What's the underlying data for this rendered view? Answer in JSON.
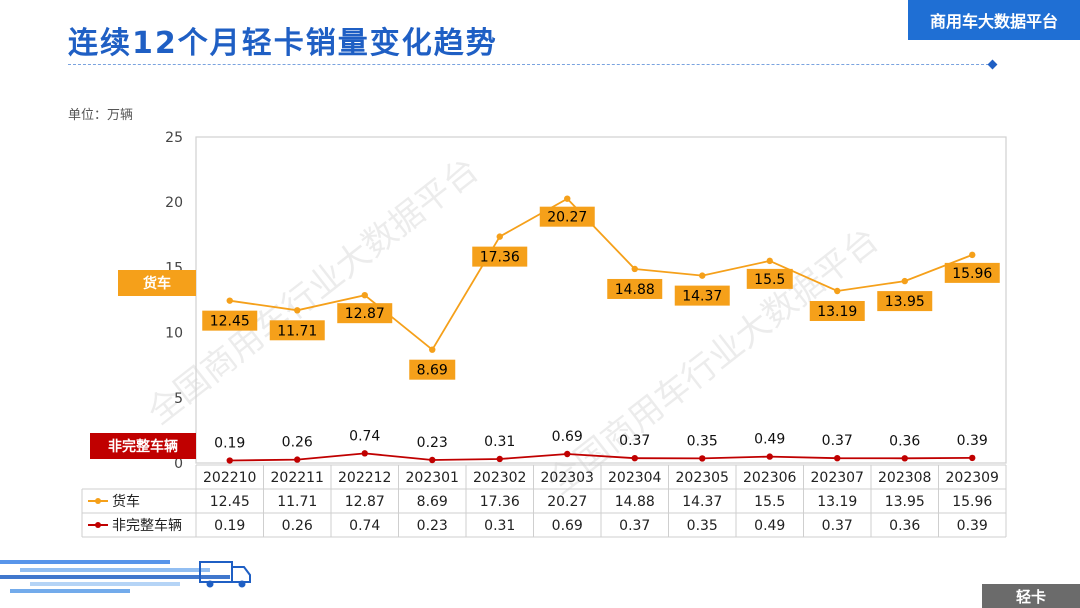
{
  "header": {
    "title": "连续12个月轻卡销量变化趋势",
    "brand": "商用车大数据平台"
  },
  "unit_label": "单位：万辆",
  "watermark": "全国商用车行业大数据平台",
  "footer_tag": "轻卡",
  "colors": {
    "truck": "#f5a01a",
    "incomplete": "#c00000",
    "title": "#1f5fc4",
    "label_fill": "#f5a01a"
  },
  "chart_data": {
    "type": "line",
    "title": "连续12个月轻卡销量变化趋势",
    "ylabel": "万辆",
    "ylim": [
      0,
      25
    ],
    "yticks": [
      0,
      5,
      10,
      15,
      20,
      25
    ],
    "categories": [
      "202210",
      "202211",
      "202212",
      "202301",
      "202302",
      "202303",
      "202304",
      "202305",
      "202306",
      "202307",
      "202308",
      "202309"
    ],
    "series": [
      {
        "name": "货车",
        "tag": "货车",
        "values": [
          12.45,
          11.71,
          12.87,
          8.69,
          17.36,
          20.27,
          14.88,
          14.37,
          15.5,
          13.19,
          13.95,
          15.96
        ]
      },
      {
        "name": "非完整车辆",
        "tag": "非完整车辆",
        "values": [
          0.19,
          0.26,
          0.74,
          0.23,
          0.31,
          0.69,
          0.37,
          0.35,
          0.49,
          0.37,
          0.36,
          0.39
        ]
      }
    ],
    "legend": "bottom-table"
  }
}
